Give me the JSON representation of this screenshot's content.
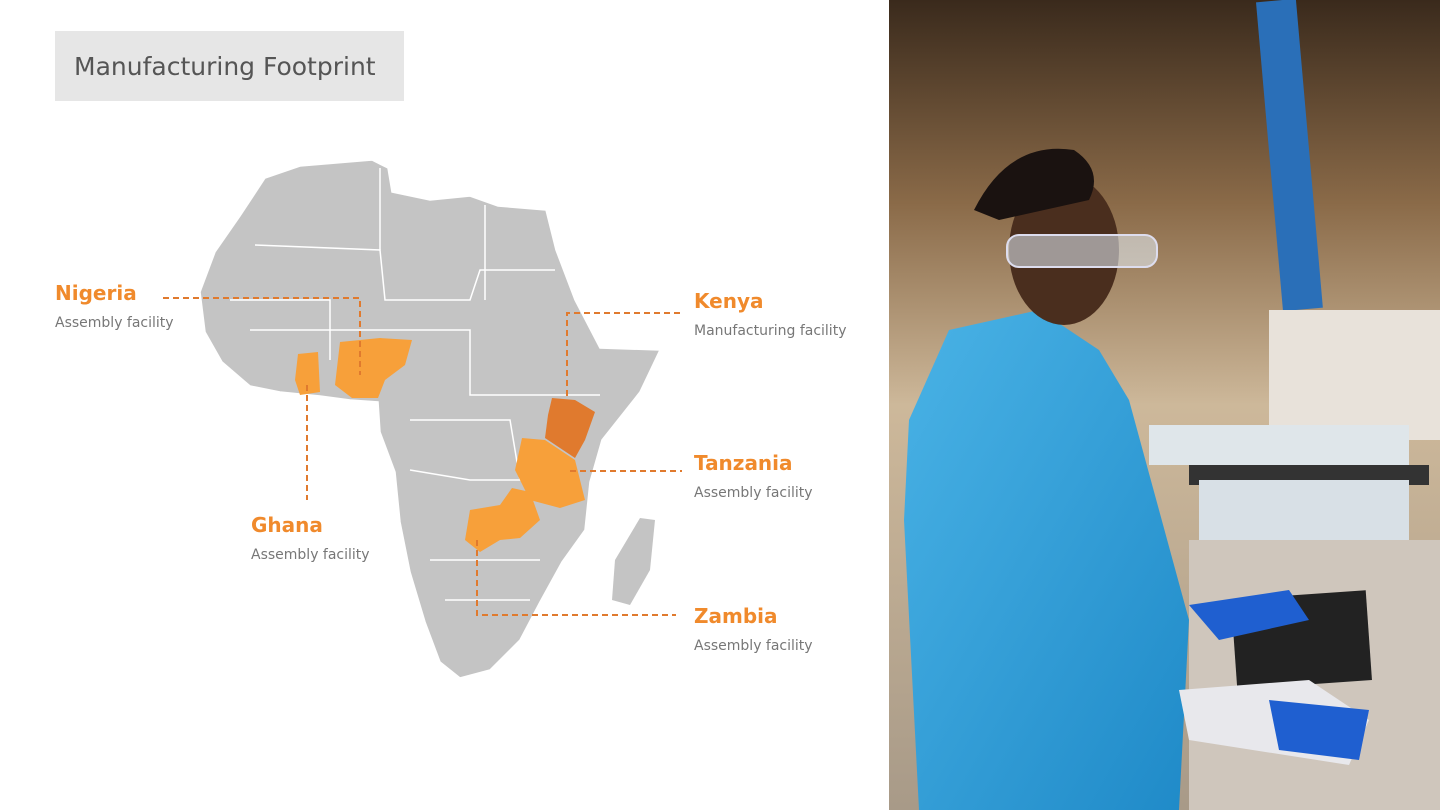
{
  "title": "Manufacturing Footprint",
  "colors": {
    "accent": "#f7a03a",
    "accent_dark": "#e07a2e",
    "label": "#f08a2c",
    "land": "#c4c4c4"
  },
  "locations": [
    {
      "name": "Nigeria",
      "desc": "Assembly facility"
    },
    {
      "name": "Ghana",
      "desc": "Assembly facility"
    },
    {
      "name": "Kenya",
      "desc": "Manufacturing facility"
    },
    {
      "name": "Tanzania",
      "desc": "Assembly facility"
    },
    {
      "name": "Zambia",
      "desc": "Assembly facility"
    }
  ],
  "photo": {
    "subject": "factory-worker-at-keyboard"
  }
}
